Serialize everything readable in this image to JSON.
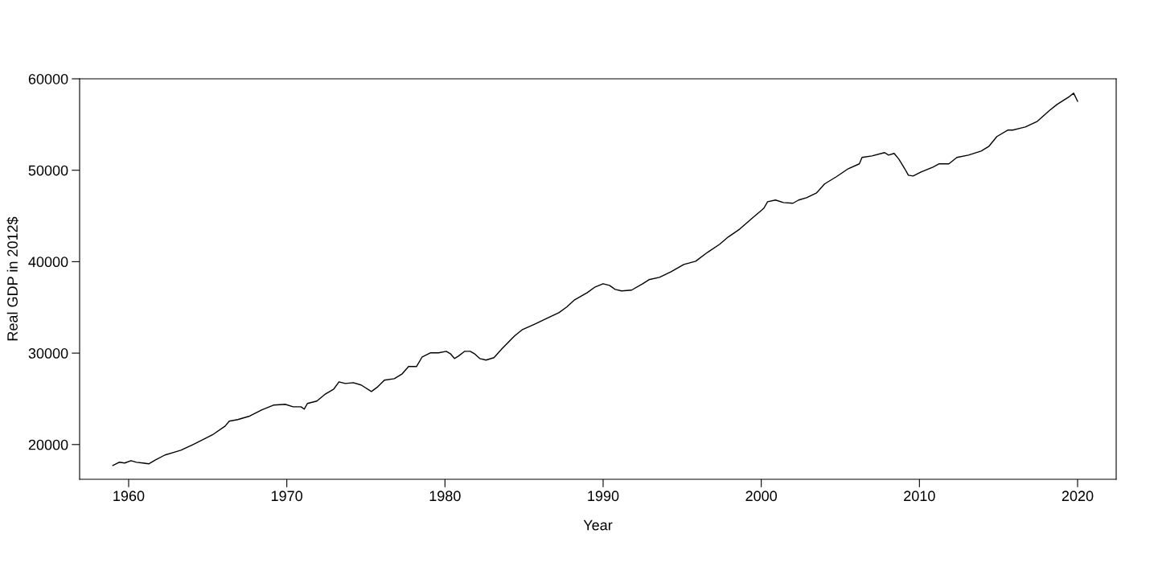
{
  "chart_data": {
    "type": "line",
    "xlabel": "Year",
    "ylabel": "Real GDP in 2012$",
    "x": [
      1959.0,
      1959.4,
      1959.75,
      1960.15,
      1960.5,
      1960.9,
      1961.27,
      1961.7,
      1962.3,
      1962.8,
      1963.3,
      1964.07,
      1964.8,
      1965.3,
      1966.1,
      1966.36,
      1966.9,
      1967.6,
      1968.4,
      1969.15,
      1969.9,
      1970.4,
      1970.9,
      1971.1,
      1971.3,
      1971.9,
      1972.45,
      1972.97,
      1973.3,
      1973.7,
      1974.2,
      1974.7,
      1975.35,
      1975.76,
      1976.17,
      1976.8,
      1977.3,
      1977.7,
      1978.2,
      1978.56,
      1979.07,
      1979.6,
      1980.08,
      1980.34,
      1980.6,
      1980.85,
      1981.25,
      1981.6,
      1981.86,
      1982.2,
      1982.6,
      1983.1,
      1983.6,
      1984.4,
      1984.9,
      1985.7,
      1986.44,
      1987.2,
      1987.7,
      1988.2,
      1989.0,
      1989.5,
      1990.0,
      1990.4,
      1990.76,
      1991.17,
      1991.8,
      1992.5,
      1992.9,
      1993.56,
      1994.3,
      1995.1,
      1995.85,
      1996.6,
      1997.37,
      1997.9,
      1998.64,
      1999.4,
      2000.0,
      2000.17,
      2000.4,
      2000.9,
      2001.4,
      2002.0,
      2002.36,
      2002.86,
      2003.5,
      2004.0,
      2004.75,
      2005.5,
      2006.2,
      2006.37,
      2007.0,
      2007.8,
      2008.05,
      2008.4,
      2008.7,
      2009.07,
      2009.3,
      2009.6,
      2010.1,
      2010.85,
      2011.25,
      2011.86,
      2012.37,
      2013.1,
      2013.9,
      2014.4,
      2014.9,
      2015.58,
      2015.9,
      2016.7,
      2017.46,
      2018.2,
      2018.7,
      2019.5,
      2019.75,
      2020.0
    ],
    "series": [
      {
        "color": "#000000",
        "values": [
          17710,
          18065,
          17980,
          18240,
          18060,
          17980,
          17890,
          18330,
          18860,
          19120,
          19380,
          20000,
          20620,
          21060,
          22020,
          22550,
          22730,
          23080,
          23780,
          24310,
          24400,
          24130,
          24130,
          23870,
          24490,
          24750,
          25540,
          26070,
          26860,
          26680,
          26770,
          26510,
          25800,
          26330,
          27040,
          27210,
          27740,
          28530,
          28530,
          29590,
          30030,
          30030,
          30200,
          29940,
          29410,
          29670,
          30200,
          30200,
          29940,
          29410,
          29240,
          29500,
          30470,
          31870,
          32580,
          33190,
          33810,
          34420,
          35040,
          35830,
          36620,
          37240,
          37590,
          37410,
          36970,
          36800,
          36890,
          37590,
          38030,
          38290,
          38910,
          39700,
          40050,
          41020,
          41900,
          42690,
          43570,
          44710,
          45590,
          45860,
          46560,
          46740,
          46470,
          46390,
          46740,
          47000,
          47530,
          48500,
          49290,
          50170,
          50700,
          51400,
          51570,
          51930,
          51660,
          51840,
          51220,
          50170,
          49460,
          49370,
          49810,
          50340,
          50700,
          50700,
          51400,
          51660,
          52100,
          52630,
          53690,
          54390,
          54390,
          54740,
          55360,
          56500,
          57200,
          58080,
          58430,
          57550
        ]
      }
    ],
    "xlim": [
      1956.9,
      2022.44
    ],
    "ylim": [
      16200,
      60000
    ],
    "xticks": [
      1960,
      1970,
      1980,
      1990,
      2000,
      2010,
      2020
    ],
    "yticks": [
      20000,
      30000,
      40000,
      50000,
      60000
    ],
    "grid": false,
    "legend": false,
    "marker": "none",
    "line_style": "solid"
  }
}
